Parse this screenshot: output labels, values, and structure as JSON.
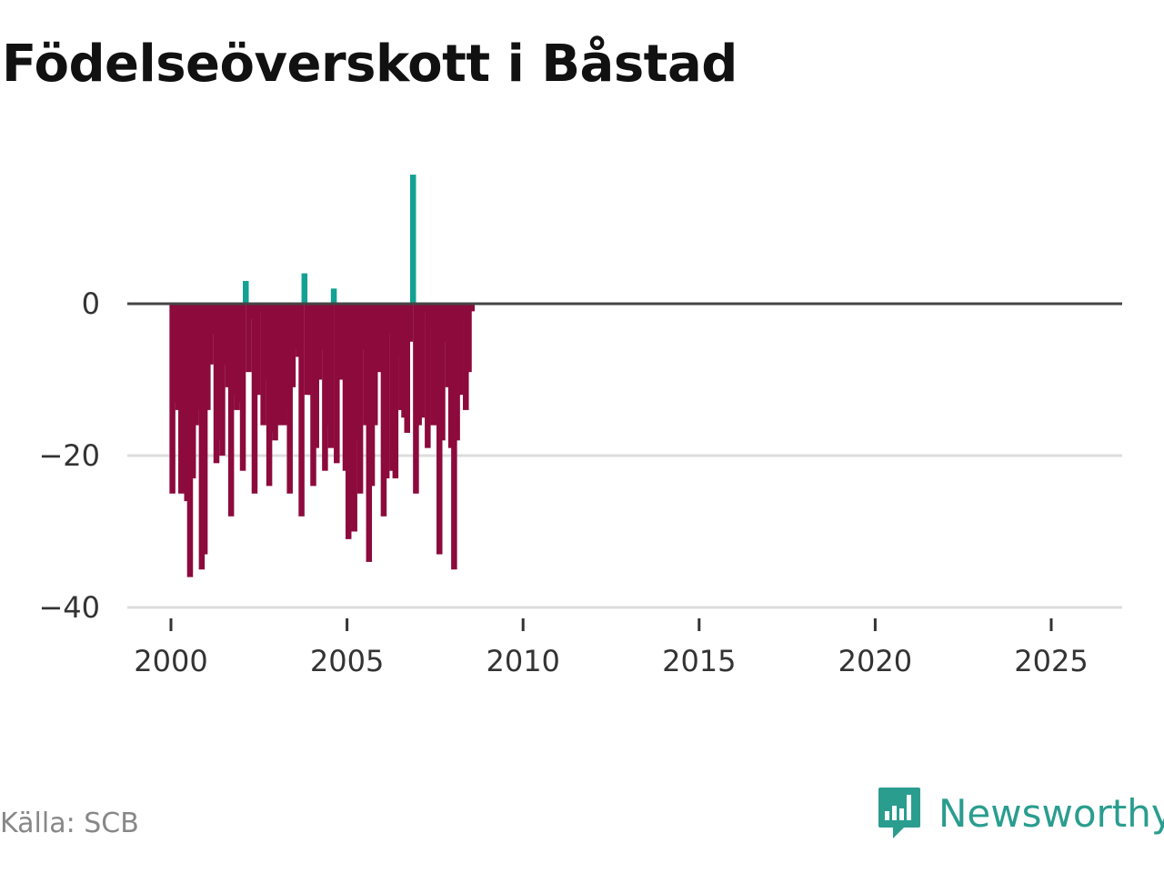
{
  "title": "Födelseöverskott i Båstad",
  "source": "Källa: SCB",
  "brand": {
    "name": "Newsworthy",
    "icon": "newsworthy-logo-icon",
    "color": "#2a9d8f"
  },
  "colors": {
    "positive": "#12a192",
    "negative": "#8c0a3c",
    "zero_line": "#444444",
    "grid": "#dddddd"
  },
  "chart_data": {
    "type": "bar",
    "title": "Födelseöverskott i Båstad",
    "xlabel": "",
    "ylabel": "",
    "ylim": [
      -40,
      20
    ],
    "xlim": [
      1999.75,
      2026.25
    ],
    "yticks": [
      0,
      -20,
      -40
    ],
    "ytick_labels": [
      "0",
      "−20",
      "−40"
    ],
    "xticks": [
      2000,
      2005,
      2010,
      2015,
      2020,
      2025
    ],
    "xtick_labels": [
      "2000",
      "2005",
      "2010",
      "2015",
      "2020",
      "2025"
    ],
    "frequency": "monthly, one bar per month from 2000",
    "start_year": 2000,
    "values": [
      -25,
      -13,
      -14,
      -25,
      -23,
      -26,
      -36,
      -23,
      -16,
      -14,
      -35,
      -33,
      -14,
      -8,
      -4,
      -21,
      -18,
      -20,
      -8,
      -11,
      -28,
      -12,
      -14,
      -13,
      -22,
      3,
      -9,
      -2,
      -25,
      -12,
      -1,
      -16,
      -10,
      -24,
      -17,
      -18,
      -16,
      -4,
      -16,
      -13,
      -25,
      -11,
      -6,
      -7,
      -28,
      4,
      -12,
      -12,
      -24,
      -19,
      -10,
      -6,
      -22,
      -16,
      -19,
      2,
      -21,
      -8,
      -10,
      -22,
      -31,
      -29,
      -30,
      -18,
      -25,
      -6,
      -16,
      -34,
      -24,
      -16,
      -7,
      -9,
      -28,
      -23,
      -4,
      -22,
      -23,
      -7,
      -14,
      -15,
      -17,
      -5,
      17,
      -25,
      -16,
      -15,
      -1,
      -19,
      -3,
      -16,
      -16,
      -33,
      -18,
      -5,
      -11,
      -19,
      -35,
      -18,
      -12,
      -2,
      -14,
      -9,
      -1
    ]
  }
}
